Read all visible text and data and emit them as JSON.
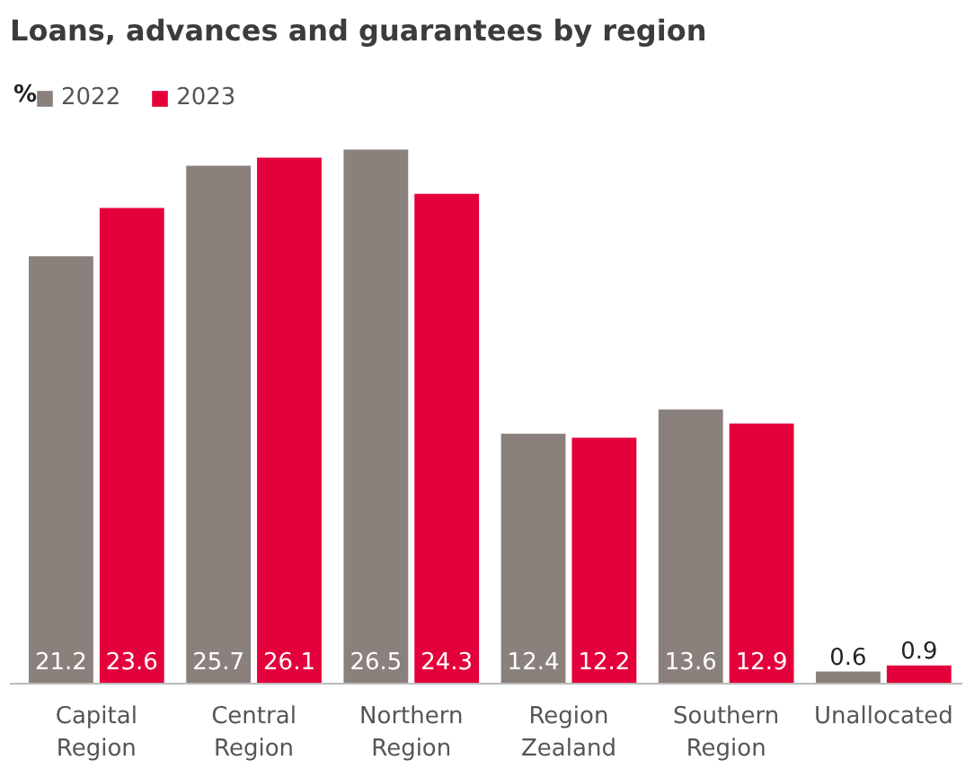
{
  "chart_data": {
    "type": "bar",
    "title": "Loans, advances and guarantees by region",
    "ylabel": "%",
    "categories": [
      "Capital\nRegion",
      "Central\nRegion",
      "Northern\nRegion",
      "Region\nZealand",
      "Southern\nRegion",
      "Unallocated"
    ],
    "series": [
      {
        "name": "2022",
        "color": "#8a807c",
        "values": [
          21.2,
          25.7,
          26.5,
          12.4,
          13.6,
          0.6
        ]
      },
      {
        "name": "2023",
        "color": "#e4003b",
        "values": [
          23.6,
          26.1,
          24.3,
          12.2,
          12.9,
          0.9
        ]
      }
    ],
    "data_labels": true,
    "legend": "top left",
    "grid": false
  }
}
